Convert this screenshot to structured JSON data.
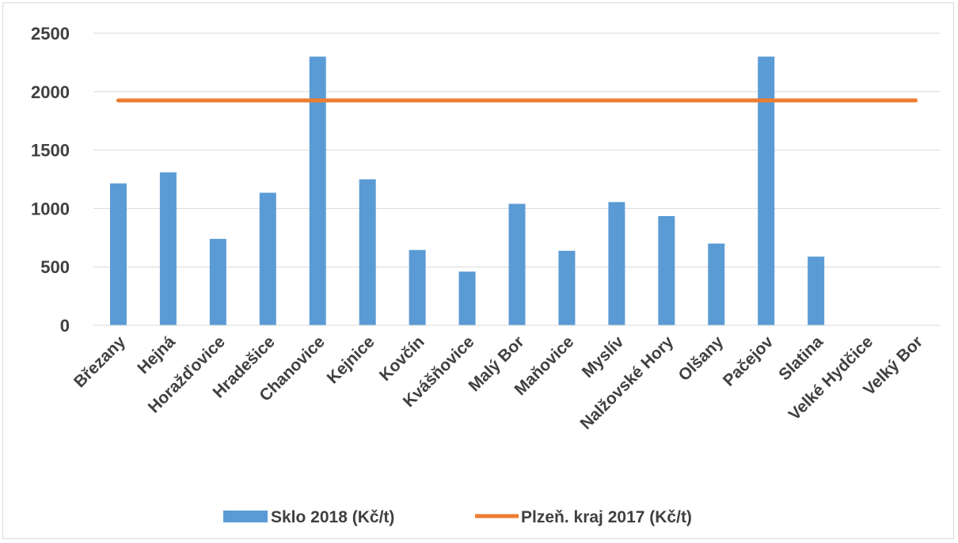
{
  "chart_data": {
    "type": "bar",
    "categories": [
      "Březany",
      "Hejná",
      "Horažďovice",
      "Hradešice",
      "Chanovice",
      "Kejnice",
      "Kovčín",
      "Kvášňovice",
      "Malý Bor",
      "Maňovice",
      "Myslív",
      "Nalžovské Hory",
      "Olšany",
      "Pačejov",
      "Slatina",
      "Velké Hydčice",
      "Velký Bor"
    ],
    "series": [
      {
        "name": "Sklo 2018 (Kč/t)",
        "type": "bar",
        "color": "#5b9bd5",
        "values": [
          1215,
          1310,
          740,
          1135,
          2300,
          1250,
          645,
          460,
          1040,
          638,
          1055,
          935,
          700,
          2300,
          588,
          0,
          0
        ]
      },
      {
        "name": "Plzeň. kraj 2017 (Kč/t)",
        "type": "line",
        "color": "#ed7d31",
        "values": [
          1925,
          1925,
          1925,
          1925,
          1925,
          1925,
          1925,
          1925,
          1925,
          1925,
          1925,
          1925,
          1925,
          1925,
          1925,
          1925,
          1925
        ]
      }
    ],
    "yticks": [
      "0",
      "500",
      "1000",
      "1500",
      "2000",
      "2500"
    ],
    "ylim": [
      0,
      2500
    ],
    "grid": true,
    "legend_position": "bottom",
    "title": "",
    "xlabel": "",
    "ylabel": ""
  }
}
